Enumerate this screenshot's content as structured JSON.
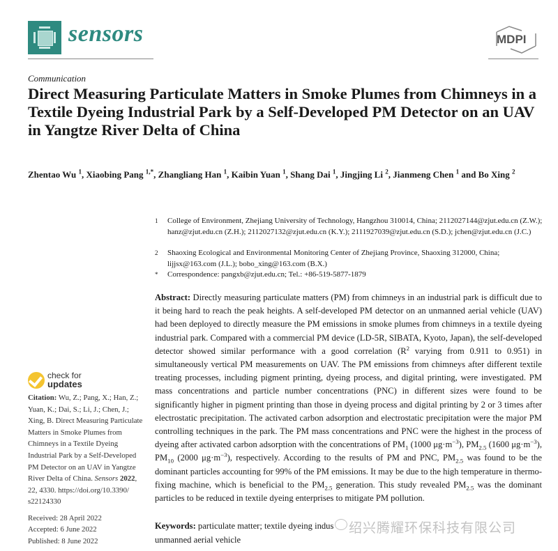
{
  "header": {
    "journal": "sensors",
    "publisher": "MDPI",
    "brand_color": "#2e8a80"
  },
  "article_type": "Communication",
  "title": "Direct Measuring Particulate Matters in Smoke Plumes from Chimneys in a Textile Dyeing Industrial Park by a Self-Developed PM Detector on an UAV in Yangtze River Delta of China",
  "authors": [
    {
      "name": "Zhentao Wu",
      "aff": "1"
    },
    {
      "name": "Xiaobing Pang",
      "aff": "1,*"
    },
    {
      "name": "Zhangliang Han",
      "aff": "1"
    },
    {
      "name": "Kaibin Yuan",
      "aff": "1"
    },
    {
      "name": "Shang Dai",
      "aff": "1"
    },
    {
      "name": "Jingjing Li",
      "aff": "2"
    },
    {
      "name": "Jianmeng Chen",
      "aff": "1"
    },
    {
      "name": "Bo Xing",
      "aff": "2"
    }
  ],
  "affiliations": [
    {
      "mark": "1",
      "text": "College of Environment, Zhejiang University of Technology, Hangzhou 310014, China; 2112027144@zjut.edu.cn (Z.W.); hanz@zjut.edu.cn (Z.H.); 2112027132@zjut.edu.cn (K.Y.); 2111927039@zjut.edu.cn (S.D.); jchen@zjut.edu.cn (J.C.)"
    },
    {
      "mark": "2",
      "text": "Shaoxing Ecological and Environmental Monitoring Center of Zhejiang Province, Shaoxing 312000, China; lijjsx@163.com (J.L.); bobo_xing@163.com (B.X.)"
    },
    {
      "mark": "*",
      "text": "Correspondence: pangxb@zjut.edu.cn; Tel.: +86-519-5877-1879"
    }
  ],
  "abstract": {
    "label": "Abstract:",
    "parts": [
      {
        "t": " Directly measuring particulate matters (PM) from chimneys in an industrial park is difficult due to it being hard to reach the peak heights. A self-developed PM detector on an unmanned aerial vehicle (UAV) had been deployed to directly measure the PM emissions in smoke plumes from chimneys in a textile dyeing industrial park. Compared with a commercial PM device (LD-5R, SIBATA, Kyoto, Japan), the self-developed detector showed similar performance with a good correlation (R"
      },
      {
        "sup": "2"
      },
      {
        "t": " varying from 0.911 to 0.951) in simultaneously vertical PM measurements on UAV. The PM emissions from chimneys after different textile treating processes, including pigment printing, dyeing process, and digital printing, were investigated. PM mass concentrations and particle number concentrations (PNC) in different sizes were found to be significantly higher in pigment printing than those in dyeing process and digital printing by 2 or 3 times after electrostatic precipitation. The activated carbon adsorption and electrostatic precipitation were the major PM controlling techniques in the park. The PM mass concentrations and PNC were the highest in the process of dyeing after activated carbon adsorption with the concentrations of PM"
      },
      {
        "sub": "1"
      },
      {
        "t": " (1000 μg·m"
      },
      {
        "sup": "−3"
      },
      {
        "t": "), PM"
      },
      {
        "sub": "2.5"
      },
      {
        "t": " (1600 μg·m"
      },
      {
        "sup": "−3"
      },
      {
        "t": "), PM"
      },
      {
        "sub": "10"
      },
      {
        "t": " (2000 μg·m"
      },
      {
        "sup": "−3"
      },
      {
        "t": "), respectively. According to the results of PM and PNC, PM"
      },
      {
        "sub": "2.5"
      },
      {
        "t": " was found to be the dominant particles accounting for 99% of the PM emissions. It may be due to the high temperature in thermo-fixing machine, which is beneficial to the PM"
      },
      {
        "sub": "2.5"
      },
      {
        "t": " generation. This study revealed PM"
      },
      {
        "sub": "2.5"
      },
      {
        "t": " was the dominant particles to be reduced in textile dyeing enterprises to mitigate PM pollution."
      }
    ]
  },
  "keywords": {
    "label": "Keywords:",
    "text_line1": " particulate matter; textile dyeing indus",
    "text_line2": "unmanned aerial vehicle"
  },
  "watermark": "绍兴腾耀环保科技有限公司",
  "check_updates": {
    "line1": "check for",
    "line2": "updates"
  },
  "citation": {
    "label": "Citation:",
    "text1": " Wu, Z.; Pang, X.; Han, Z.; Yuan, K.; Dai, S.; Li, J.; Chen, J.; Xing, B. Direct Measuring Particulate Matters in Smoke Plumes from Chimneys in a Textile Dyeing Industrial Park by a Self-Developed PM Detector on an UAV in Yangtze River Delta of China. ",
    "journal": "Sensors",
    "year": "2022",
    "text2": ", 22, 4330.  https://doi.org/10.3390/ s22124330"
  },
  "dates": {
    "received": "Received: 28 April 2022",
    "accepted": "Accepted: 6 June 2022",
    "published": "Published: 8 June 2022"
  }
}
